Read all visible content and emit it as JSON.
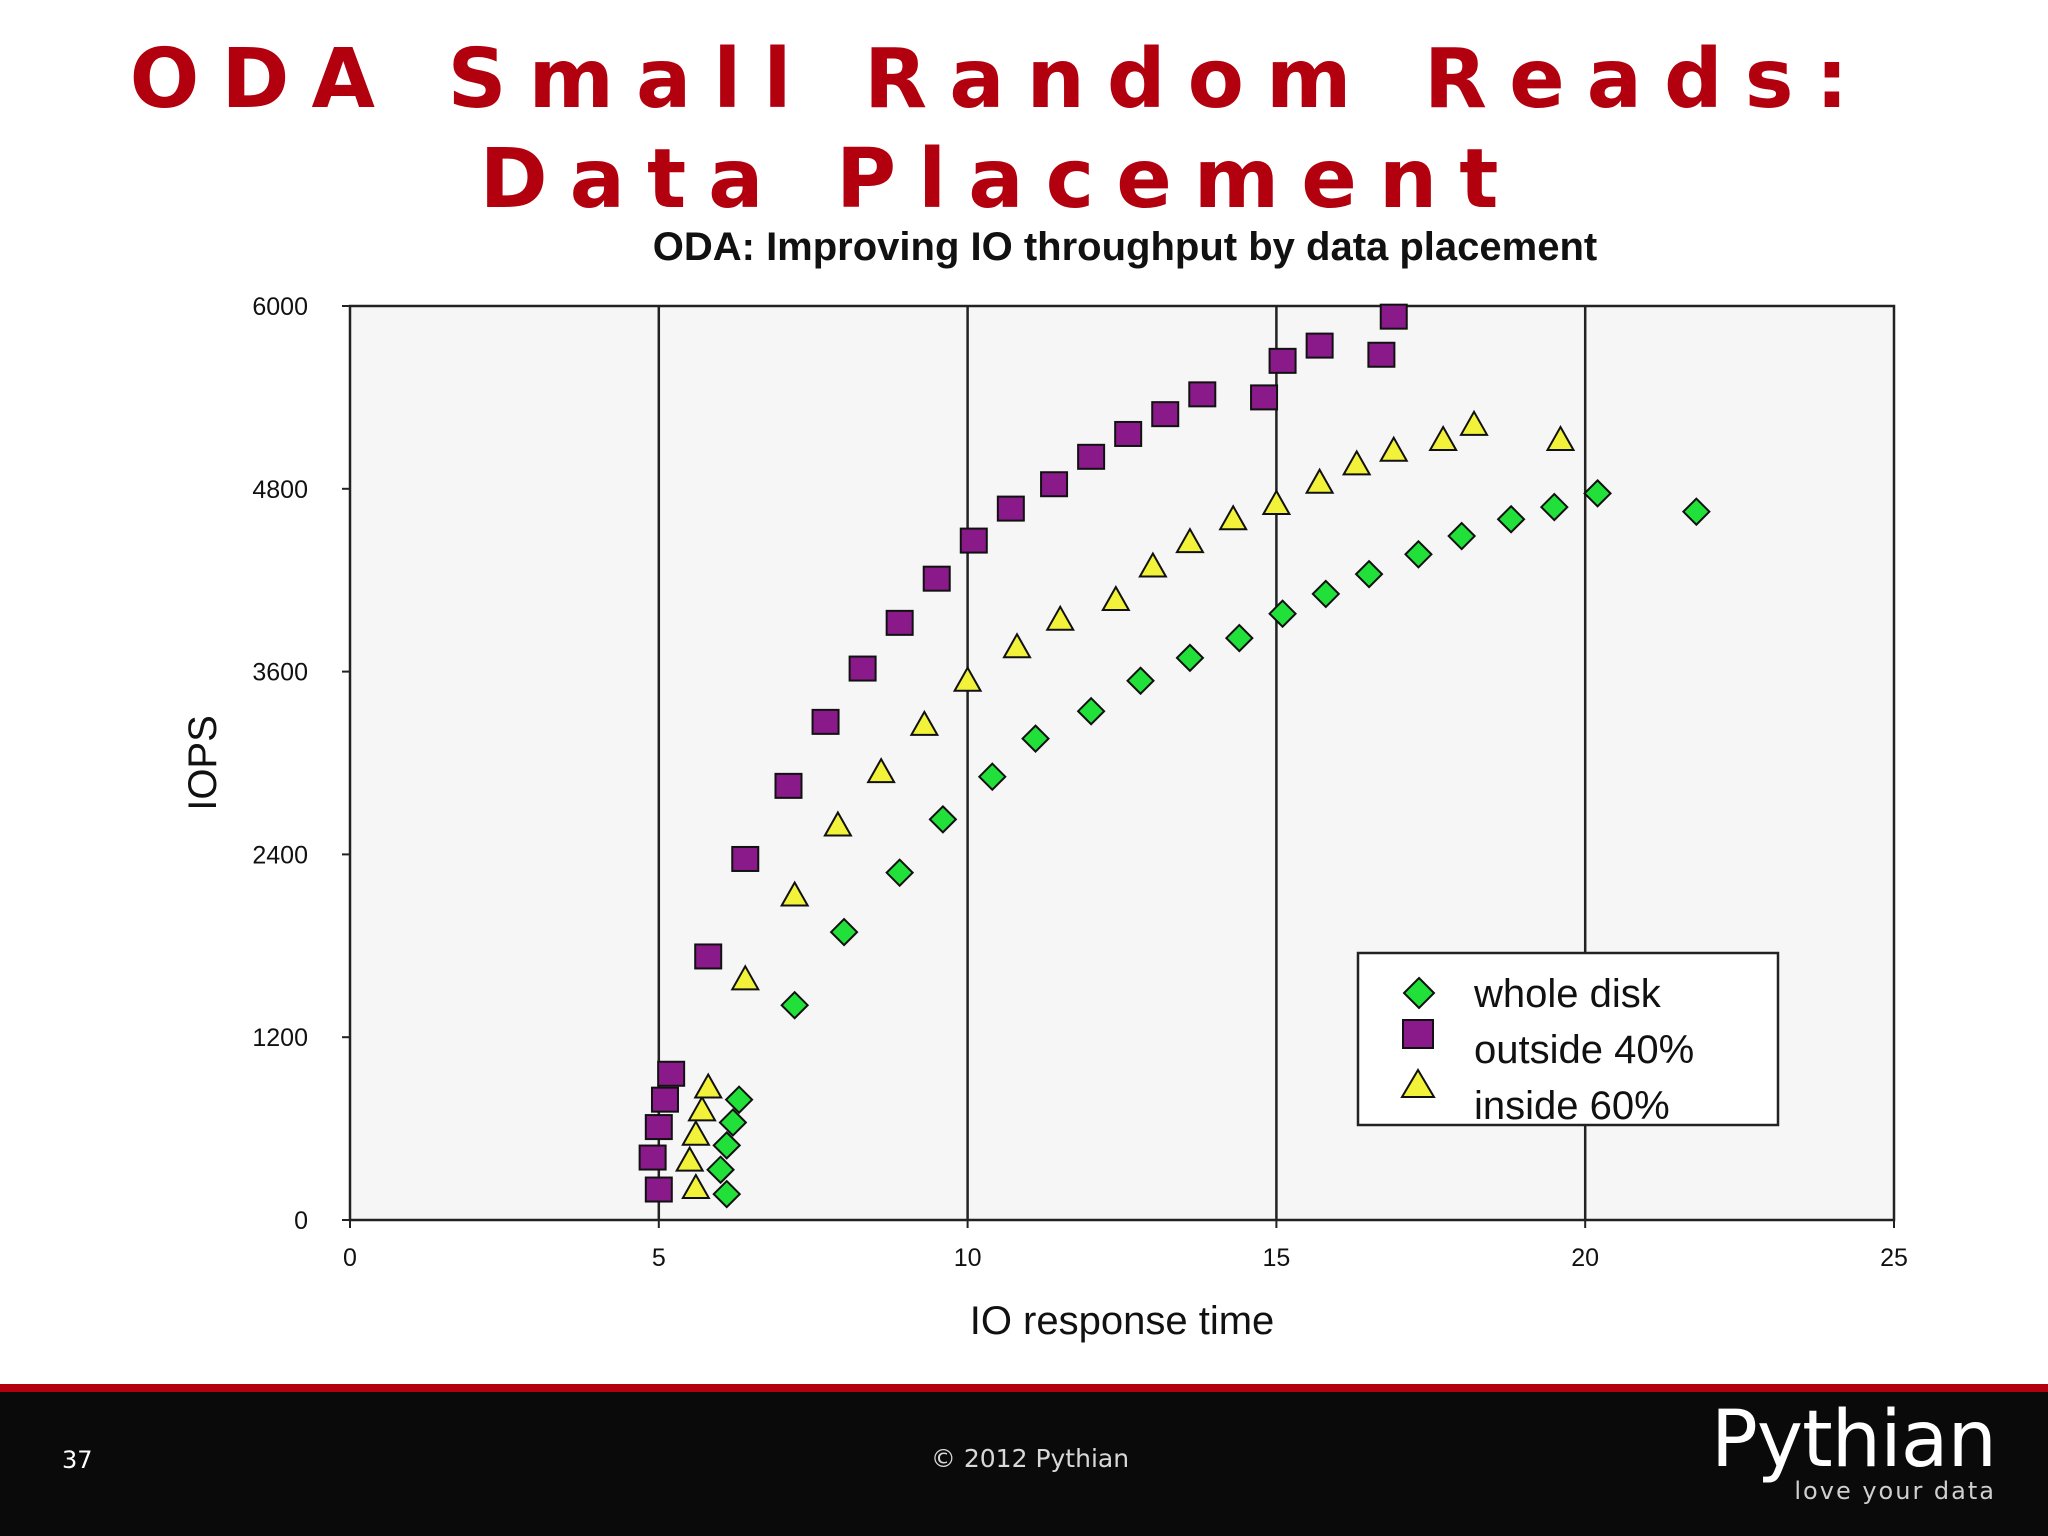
{
  "slide": {
    "title": "ODA Small Random Reads: Data Placement",
    "page_number": "37",
    "copyright": "© 2012 Pythian",
    "brand": {
      "name": "Pythian",
      "tagline": "love your data"
    }
  },
  "colors": {
    "title_red": "#b3000f",
    "whole_disk": "#22e03a",
    "outside_40": "#8a1a8a",
    "inside_60": "#f2f23a"
  },
  "chart_data": {
    "type": "scatter",
    "title": "ODA: Improving IO throughput by data placement",
    "xlabel": "IO response time",
    "ylabel": "IOPS",
    "xlim": [
      0,
      25
    ],
    "ylim": [
      0,
      6000
    ],
    "xticks": [
      0,
      5,
      10,
      15,
      20,
      25
    ],
    "yticks": [
      0,
      1200,
      2400,
      3600,
      4800,
      6000
    ],
    "vertical_gridlines": [
      5,
      10,
      15,
      20
    ],
    "legend_position": "bottom-right",
    "series": [
      {
        "name": "whole disk",
        "marker": "diamond",
        "color": "#22e03a",
        "points": [
          [
            6.1,
            170
          ],
          [
            6.0,
            330
          ],
          [
            6.1,
            490
          ],
          [
            6.2,
            640
          ],
          [
            6.3,
            790
          ],
          [
            7.2,
            1410
          ],
          [
            8.0,
            1890
          ],
          [
            8.9,
            2280
          ],
          [
            9.6,
            2630
          ],
          [
            10.4,
            2910
          ],
          [
            11.1,
            3160
          ],
          [
            12.0,
            3340
          ],
          [
            12.8,
            3540
          ],
          [
            13.6,
            3690
          ],
          [
            14.4,
            3820
          ],
          [
            15.1,
            3980
          ],
          [
            15.8,
            4110
          ],
          [
            16.5,
            4240
          ],
          [
            17.3,
            4370
          ],
          [
            18.0,
            4490
          ],
          [
            18.8,
            4600
          ],
          [
            19.5,
            4680
          ],
          [
            20.2,
            4770
          ],
          [
            21.8,
            4650
          ]
        ]
      },
      {
        "name": "outside 40%",
        "marker": "square",
        "color": "#8a1a8a",
        "points": [
          [
            5.0,
            200
          ],
          [
            4.9,
            410
          ],
          [
            5.0,
            610
          ],
          [
            5.1,
            790
          ],
          [
            5.2,
            960
          ],
          [
            5.8,
            1730
          ],
          [
            6.4,
            2370
          ],
          [
            7.1,
            2850
          ],
          [
            7.7,
            3270
          ],
          [
            8.3,
            3620
          ],
          [
            8.9,
            3920
          ],
          [
            9.5,
            4210
          ],
          [
            10.1,
            4460
          ],
          [
            10.7,
            4670
          ],
          [
            11.4,
            4830
          ],
          [
            12.0,
            5010
          ],
          [
            12.6,
            5160
          ],
          [
            13.2,
            5290
          ],
          [
            13.8,
            5420
          ],
          [
            14.8,
            5400
          ],
          [
            15.1,
            5640
          ],
          [
            15.7,
            5740
          ],
          [
            16.7,
            5680
          ],
          [
            16.9,
            5930
          ]
        ]
      },
      {
        "name": "inside 60%",
        "marker": "triangle",
        "color": "#f2f23a",
        "points": [
          [
            5.6,
            210
          ],
          [
            5.5,
            390
          ],
          [
            5.6,
            560
          ],
          [
            5.7,
            720
          ],
          [
            5.8,
            870
          ],
          [
            6.4,
            1580
          ],
          [
            7.2,
            2130
          ],
          [
            7.9,
            2590
          ],
          [
            8.6,
            2940
          ],
          [
            9.3,
            3250
          ],
          [
            10.0,
            3540
          ],
          [
            10.8,
            3760
          ],
          [
            11.5,
            3940
          ],
          [
            12.4,
            4070
          ],
          [
            13.0,
            4290
          ],
          [
            13.6,
            4450
          ],
          [
            14.3,
            4600
          ],
          [
            15.0,
            4700
          ],
          [
            15.7,
            4840
          ],
          [
            16.3,
            4960
          ],
          [
            16.9,
            5050
          ],
          [
            17.7,
            5120
          ],
          [
            18.2,
            5220
          ],
          [
            19.6,
            5120
          ]
        ]
      }
    ]
  }
}
